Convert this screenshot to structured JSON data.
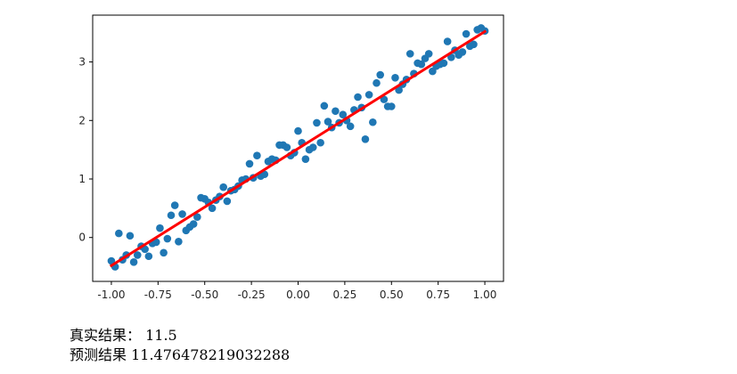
{
  "chart_data": {
    "type": "scatter",
    "title": "",
    "xlabel": "",
    "ylabel": "",
    "xlim": [
      -1.1,
      1.1
    ],
    "ylim": [
      -0.75,
      3.8
    ],
    "grid": false,
    "x_ticks": [
      -1.0,
      -0.75,
      -0.5,
      -0.25,
      0.0,
      0.25,
      0.5,
      0.75,
      1.0
    ],
    "x_tick_labels": [
      "-1.00",
      "-0.75",
      "-0.50",
      "-0.25",
      "0.00",
      "0.25",
      "0.50",
      "0.75",
      "1.00"
    ],
    "y_ticks": [
      0,
      1,
      2,
      3
    ],
    "y_tick_labels": [
      "0",
      "1",
      "2",
      "3"
    ],
    "series": [
      {
        "kind": "scatter",
        "color": "#1f77b4",
        "x": [
          -1.0,
          -0.98,
          -0.96,
          -0.94,
          -0.92,
          -0.9,
          -0.88,
          -0.86,
          -0.84,
          -0.82,
          -0.8,
          -0.78,
          -0.76,
          -0.74,
          -0.72,
          -0.7,
          -0.68,
          -0.66,
          -0.64,
          -0.62,
          -0.6,
          -0.58,
          -0.56,
          -0.54,
          -0.52,
          -0.5,
          -0.48,
          -0.46,
          -0.44,
          -0.42,
          -0.4,
          -0.38,
          -0.36,
          -0.34,
          -0.32,
          -0.3,
          -0.28,
          -0.26,
          -0.24,
          -0.22,
          -0.2,
          -0.18,
          -0.16,
          -0.14,
          -0.12,
          -0.1,
          -0.08,
          -0.06,
          -0.04,
          -0.02,
          0.0,
          0.02,
          0.04,
          0.06,
          0.08,
          0.1,
          0.12,
          0.14,
          0.16,
          0.18,
          0.2,
          0.22,
          0.24,
          0.26,
          0.28,
          0.3,
          0.32,
          0.34,
          0.36,
          0.38,
          0.4,
          0.42,
          0.44,
          0.46,
          0.48,
          0.5,
          0.52,
          0.54,
          0.56,
          0.58,
          0.6,
          0.62,
          0.64,
          0.66,
          0.68,
          0.7,
          0.72,
          0.74,
          0.76,
          0.78,
          0.8,
          0.82,
          0.84,
          0.86,
          0.88,
          0.9,
          0.92,
          0.94,
          0.96,
          0.98,
          1.0
        ],
        "y": [
          -0.4,
          -0.5,
          0.07,
          -0.38,
          -0.3,
          0.03,
          -0.42,
          -0.3,
          -0.15,
          -0.2,
          -0.32,
          -0.1,
          -0.08,
          0.16,
          -0.26,
          -0.02,
          0.38,
          0.55,
          -0.07,
          0.4,
          0.12,
          0.18,
          0.23,
          0.35,
          0.68,
          0.66,
          0.6,
          0.5,
          0.64,
          0.7,
          0.86,
          0.62,
          0.8,
          0.82,
          0.88,
          0.98,
          1.0,
          1.26,
          1.02,
          1.4,
          1.05,
          1.08,
          1.3,
          1.34,
          1.32,
          1.58,
          1.58,
          1.54,
          1.4,
          1.45,
          1.82,
          1.62,
          1.34,
          1.5,
          1.54,
          1.96,
          1.62,
          2.25,
          1.98,
          1.88,
          2.16,
          1.96,
          2.1,
          2.0,
          1.9,
          2.18,
          2.4,
          2.22,
          1.68,
          2.44,
          1.97,
          2.64,
          2.78,
          2.36,
          2.24,
          2.24,
          2.73,
          2.52,
          2.62,
          2.7,
          3.14,
          2.8,
          2.98,
          2.96,
          3.06,
          3.14,
          2.84,
          2.93,
          2.96,
          2.98,
          3.35,
          3.08,
          3.2,
          3.12,
          3.17,
          3.48,
          3.27,
          3.3,
          3.55,
          3.58,
          3.53
        ]
      },
      {
        "kind": "line",
        "color": "#ff0000",
        "x": [
          -1.0,
          1.0
        ],
        "y": [
          -0.48,
          3.52
        ]
      }
    ]
  },
  "output": {
    "line1": "真实结果： 11.5",
    "line2": "预测结果 11.476478219032288"
  }
}
